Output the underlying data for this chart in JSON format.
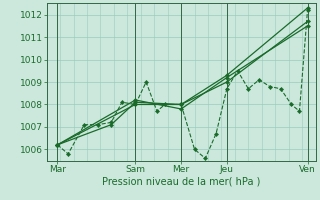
{
  "xlabel": "Pression niveau de la mer( hPa )",
  "ylim": [
    1005.5,
    1012.5
  ],
  "yticks": [
    1006,
    1007,
    1008,
    1009,
    1010,
    1011,
    1012
  ],
  "day_labels": [
    "Mar",
    "Sam",
    "Mer",
    "Jeu",
    "Ven"
  ],
  "day_positions": [
    0.04,
    0.33,
    0.5,
    0.67,
    0.97
  ],
  "bg_color": "#cce8dd",
  "grid_color": "#99ccbb",
  "line_color": "#1a6b2a",
  "vline_color": "#336644",
  "detailed_series": [
    0.04,
    1006.2,
    0.08,
    1005.8,
    0.14,
    1007.1,
    0.19,
    1007.1,
    0.24,
    1007.2,
    0.28,
    1008.1,
    0.33,
    1008.0,
    0.37,
    1009.0,
    0.41,
    1007.7,
    0.44,
    1008.0,
    0.5,
    1008.0,
    0.55,
    1006.0,
    0.59,
    1005.6,
    0.63,
    1006.7,
    0.67,
    1008.7,
    0.71,
    1009.5,
    0.75,
    1008.7,
    0.79,
    1009.1,
    0.83,
    1008.8,
    0.87,
    1008.7,
    0.91,
    1008.0,
    0.94,
    1007.7,
    0.97,
    1012.2
  ],
  "smooth_series": [
    [
      [
        0.04,
        1006.2
      ],
      [
        0.33,
        1008.0
      ],
      [
        0.5,
        1008.0
      ],
      [
        0.67,
        1009.3
      ],
      [
        0.97,
        1012.3
      ]
    ],
    [
      [
        0.04,
        1006.2
      ],
      [
        0.24,
        1007.1
      ],
      [
        0.33,
        1008.1
      ],
      [
        0.5,
        1008.0
      ],
      [
        0.67,
        1009.0
      ],
      [
        0.97,
        1011.7
      ]
    ],
    [
      [
        0.04,
        1006.2
      ],
      [
        0.33,
        1008.2
      ],
      [
        0.5,
        1007.8
      ],
      [
        0.67,
        1009.2
      ],
      [
        0.97,
        1011.5
      ]
    ]
  ]
}
